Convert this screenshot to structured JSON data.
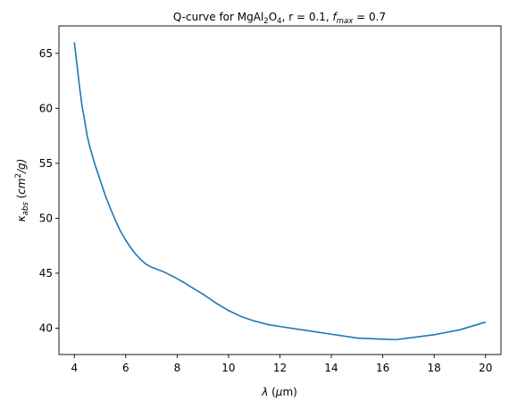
{
  "chart_data": {
    "type": "line",
    "title": {
      "prefix": "Q-curve for MgAl",
      "sub1": "2",
      "mid": "O",
      "sub2": "4",
      "params": ", r = 0.1, ",
      "f_symbol": "f",
      "f_sub": "max",
      "f_value": " = 0.7"
    },
    "xlabel": {
      "symbol": "λ",
      "open": " (",
      "unit_mu": "μ",
      "unit_rest": "m)"
    },
    "ylabel": {
      "symbol": "κ",
      "sub": "abs",
      "open": " (",
      "unit_cm": "cm",
      "unit_exp": "2",
      "unit_rest": "/g)"
    },
    "xlim": [
      3.4,
      20.6
    ],
    "ylim": [
      37.6,
      67.5
    ],
    "x_ticks": [
      4,
      6,
      8,
      10,
      12,
      14,
      16,
      18,
      20
    ],
    "y_ticks": [
      40,
      45,
      50,
      55,
      60,
      65
    ],
    "grid": false,
    "colors": {
      "line": "#1f77b4"
    },
    "series": [
      {
        "x": [
          4.0,
          4.1,
          4.2,
          4.3,
          4.4,
          4.5,
          4.6,
          4.8,
          5.0,
          5.2,
          5.4,
          5.6,
          5.8,
          6.0,
          6.2,
          6.4,
          6.6,
          6.8,
          7.0,
          7.5,
          8.0,
          8.3,
          8.5,
          9.0,
          9.5,
          10.0,
          10.5,
          11.0,
          11.5,
          12.0,
          13.0,
          14.0,
          15.0,
          16.0,
          16.5,
          17.0,
          18.0,
          19.0,
          20.0
        ],
        "y": [
          66.0,
          64.0,
          62.0,
          60.2,
          58.9,
          57.5,
          56.5,
          54.9,
          53.5,
          52.1,
          50.9,
          49.8,
          48.8,
          48.0,
          47.3,
          46.7,
          46.2,
          45.8,
          45.55,
          45.1,
          44.5,
          44.1,
          43.8,
          43.1,
          42.3,
          41.6,
          41.05,
          40.65,
          40.35,
          40.15,
          39.8,
          39.45,
          39.1,
          39.0,
          38.95,
          39.1,
          39.4,
          39.85,
          40.55
        ]
      }
    ]
  }
}
